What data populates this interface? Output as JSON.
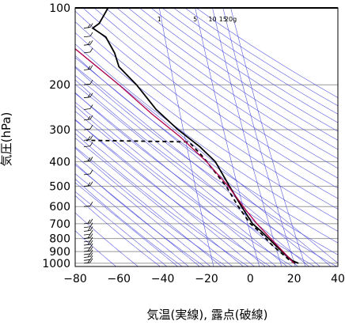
{
  "chart_data": {
    "type": "line",
    "title": "",
    "xlabel": "気温(実線), 露点(破線)",
    "ylabel": "気圧(hPa)",
    "xlim": [
      -80,
      40
    ],
    "ylim": [
      1030,
      100
    ],
    "y_scale": "log",
    "x_ticks": [
      "−80",
      "−60",
      "−40",
      "−20",
      "0",
      "20",
      "40"
    ],
    "y_ticks": [
      "100",
      "200",
      "300",
      "400",
      "500",
      "600",
      "700",
      "800",
      "900",
      "1000"
    ],
    "mixing_ratio_labels": [
      "1",
      "5",
      "10",
      "15",
      "20g"
    ],
    "grid": true,
    "colors": {
      "temperature": "#000000",
      "dewpoint": "#000000",
      "parcel": "#b0004a",
      "guides": "#3a3ad8",
      "grid": "#999999"
    },
    "series": [
      {
        "role": "temperature",
        "style": "solid",
        "points": [
          {
            "t": 22.0,
            "p": 1000
          },
          {
            "t": 19.0,
            "p": 975
          },
          {
            "t": 16.0,
            "p": 925
          },
          {
            "t": 11.5,
            "p": 850
          },
          {
            "t": 5.0,
            "p": 750
          },
          {
            "t": 1.0,
            "p": 700
          },
          {
            "t": -4.0,
            "p": 600
          },
          {
            "t": -9.5,
            "p": 500
          },
          {
            "t": -16.0,
            "p": 400
          },
          {
            "t": -23.0,
            "p": 350
          },
          {
            "t": -33.0,
            "p": 300
          },
          {
            "t": -43.0,
            "p": 250
          },
          {
            "t": -52.0,
            "p": 200
          },
          {
            "t": -60.0,
            "p": 170
          },
          {
            "t": -62.0,
            "p": 150
          },
          {
            "t": -66.0,
            "p": 130
          },
          {
            "t": -72.0,
            "p": 120
          },
          {
            "t": -69.0,
            "p": 115
          },
          {
            "t": -65.0,
            "p": 100
          }
        ]
      },
      {
        "role": "dewpoint",
        "style": "dashed",
        "points": [
          {
            "t": 20.5,
            "p": 1000
          },
          {
            "t": 18.0,
            "p": 975
          },
          {
            "t": 15.0,
            "p": 925
          },
          {
            "t": 10.0,
            "p": 850
          },
          {
            "t": 4.0,
            "p": 750
          },
          {
            "t": 0.0,
            "p": 700
          },
          {
            "t": -5.5,
            "p": 600
          },
          {
            "t": -11.0,
            "p": 500
          },
          {
            "t": -17.0,
            "p": 430
          },
          {
            "t": -22.0,
            "p": 380
          },
          {
            "t": -28.0,
            "p": 335
          },
          {
            "t": -75.0,
            "p": 330
          }
        ]
      },
      {
        "role": "parcel",
        "style": "solid",
        "points": [
          {
            "t": 20.0,
            "p": 1000
          },
          {
            "t": 16.0,
            "p": 920
          },
          {
            "t": 11.0,
            "p": 830
          },
          {
            "t": 3.0,
            "p": 700
          },
          {
            "t": -2.0,
            "p": 620
          },
          {
            "t": -10.0,
            "p": 500
          },
          {
            "t": -20.0,
            "p": 400
          },
          {
            "t": -32.0,
            "p": 320
          },
          {
            "t": -45.0,
            "p": 260
          },
          {
            "t": -60.0,
            "p": 200
          },
          {
            "t": -82.0,
            "p": 140
          }
        ]
      }
    ],
    "wind_barbs_pressures": [
      1000,
      975,
      950,
      925,
      900,
      875,
      850,
      825,
      800,
      775,
      750,
      725,
      700,
      600,
      500,
      450,
      400,
      350,
      330,
      300,
      275,
      250,
      225,
      200,
      175,
      150,
      140,
      130,
      120
    ]
  }
}
